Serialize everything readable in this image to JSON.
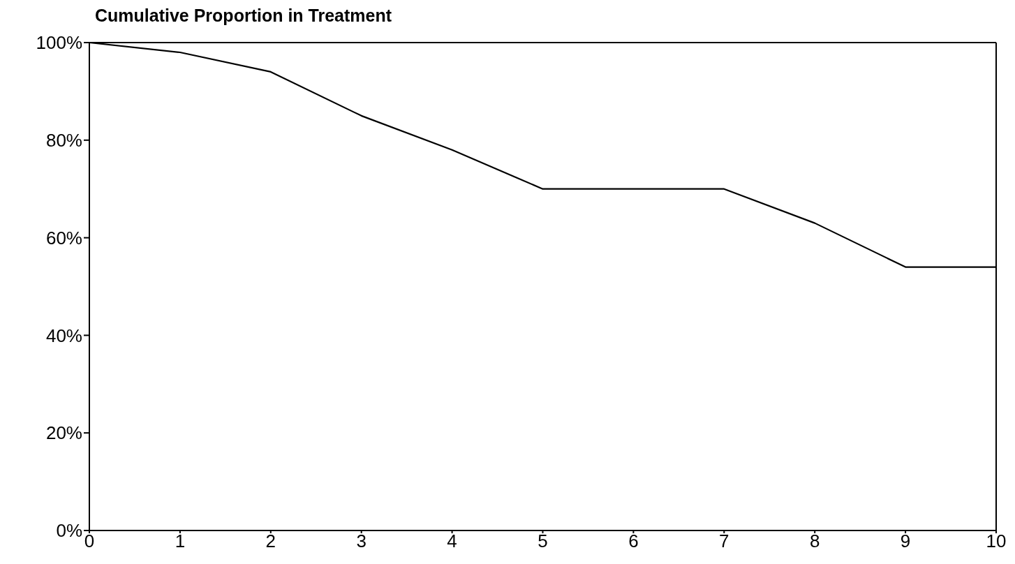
{
  "chart_data": {
    "type": "line",
    "title": "Cumulative Proportion in Treatment",
    "x": [
      0,
      1,
      2,
      3,
      4,
      5,
      6,
      7,
      8,
      9,
      10
    ],
    "series": [
      {
        "color": "#000000",
        "values": [
          100,
          98,
          94,
          85,
          78,
          70,
          70,
          70,
          63,
          54,
          54
        ]
      }
    ],
    "xlim": [
      0,
      10
    ],
    "xticks": [
      0,
      1,
      2,
      3,
      4,
      5,
      6,
      7,
      8,
      9,
      10
    ],
    "ylim": [
      0,
      100
    ],
    "yticks": [
      {
        "value": 0,
        "label": "0%"
      },
      {
        "value": 20,
        "label": "20%"
      },
      {
        "value": 40,
        "label": "40%"
      },
      {
        "value": 60,
        "label": "60%"
      },
      {
        "value": 80,
        "label": "80%"
      },
      {
        "value": 100,
        "label": "100%"
      }
    ],
    "grid": false,
    "legend": false,
    "marker": "none",
    "line_style": "solid"
  }
}
